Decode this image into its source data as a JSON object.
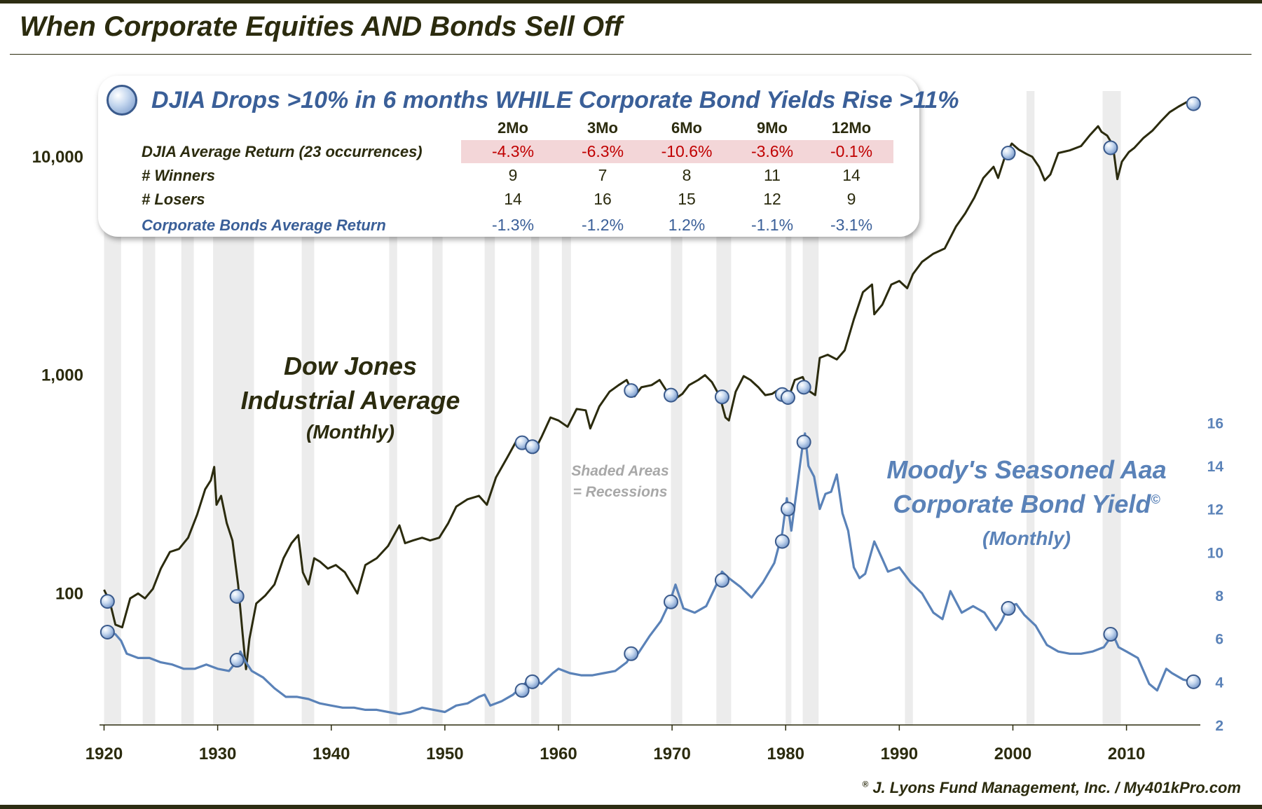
{
  "title": "When Corporate Equities AND Bonds Sell Off",
  "legend_title": "DJIA Drops >10% in 6 months WHILE Corporate Bond Yields Rise >11%",
  "stats_table": {
    "columns": [
      "2Mo",
      "3Mo",
      "6Mo",
      "9Mo",
      "12Mo"
    ],
    "rows": [
      {
        "label": "DJIA Average Return (23 occurrences)",
        "values": [
          "-4.3%",
          "-6.3%",
          "-10.6%",
          "-3.6%",
          "-0.1%"
        ]
      },
      {
        "label": "# Winners",
        "values": [
          "9",
          "7",
          "8",
          "11",
          "14"
        ]
      },
      {
        "label": "# Losers",
        "values": [
          "14",
          "16",
          "15",
          "12",
          "9"
        ]
      },
      {
        "label": "Corporate Bonds Average Return",
        "values": [
          "-1.3%",
          "-1.2%",
          "1.2%",
          "-1.1%",
          "-3.1%"
        ]
      }
    ]
  },
  "labels": {
    "dow_line1": "Dow Jones",
    "dow_line2": "Industrial Average",
    "dow_line3": "(Monthly)",
    "moody_line1": "Moody's Seasoned Aaa",
    "moody_line2": "Corporate Bond Yield",
    "moody_mark": "©",
    "moody_line3": "(Monthly)",
    "shade_line1": "Shaded Areas",
    "shade_line2": "= Recessions",
    "copyright_mark": "®",
    "copyright": "J. Lyons Fund Management, Inc. / My401kPro.com"
  },
  "colors": {
    "dow_line": "#2b2b0e",
    "bond_line": "#5a82b8",
    "recession_shade": "#e6e6e6",
    "highlight_band": "#f3d6d8",
    "negative": "#c00000"
  },
  "chart_data": {
    "type": "line",
    "x_ticks": [
      1920,
      1930,
      1940,
      1950,
      1960,
      1970,
      1980,
      1990,
      2000,
      2010
    ],
    "x_range": [
      1919.6,
      2016.5
    ],
    "left_axis": {
      "scale": "log",
      "ticks": [
        100,
        1000,
        10000
      ],
      "tick_labels": [
        "100",
        "1,000",
        "10,000"
      ],
      "range": [
        25,
        20000
      ]
    },
    "right_axis": {
      "scale": "linear",
      "ticks": [
        2,
        4,
        6,
        8,
        10,
        12,
        14,
        16
      ],
      "range": [
        2,
        16.5
      ]
    },
    "recessions": [
      [
        1920.0,
        1921.5
      ],
      [
        1923.4,
        1924.5
      ],
      [
        1926.8,
        1927.9
      ],
      [
        1929.6,
        1933.2
      ],
      [
        1937.4,
        1938.5
      ],
      [
        1945.1,
        1945.8
      ],
      [
        1948.9,
        1949.8
      ],
      [
        1953.5,
        1954.4
      ],
      [
        1957.6,
        1958.3
      ],
      [
        1960.3,
        1961.1
      ],
      [
        1969.9,
        1970.9
      ],
      [
        1973.9,
        1975.2
      ],
      [
        1980.0,
        1980.5
      ],
      [
        1981.5,
        1982.9
      ],
      [
        1990.5,
        1991.2
      ],
      [
        2001.2,
        2001.9
      ],
      [
        2007.9,
        2009.5
      ]
    ],
    "series": [
      {
        "name": "Dow Jones Industrial Average (Monthly)",
        "axis": "left",
        "x": [
          1920.0,
          1920.5,
          1921.0,
          1921.6,
          1922.3,
          1923.0,
          1923.6,
          1924.3,
          1925.0,
          1925.8,
          1926.6,
          1927.4,
          1928.2,
          1928.9,
          1929.4,
          1929.7,
          1929.9,
          1930.3,
          1930.8,
          1931.3,
          1931.8,
          1932.2,
          1932.5,
          1932.8,
          1933.4,
          1934.2,
          1935.0,
          1935.8,
          1936.5,
          1937.1,
          1937.5,
          1938.0,
          1938.5,
          1939.0,
          1939.7,
          1940.4,
          1941.2,
          1942.3,
          1943.0,
          1944.0,
          1945.0,
          1946.0,
          1946.5,
          1947.2,
          1948.0,
          1948.7,
          1949.5,
          1950.3,
          1951.0,
          1952.0,
          1953.0,
          1953.7,
          1954.5,
          1955.5,
          1956.3,
          1957.0,
          1957.8,
          1958.5,
          1959.3,
          1960.0,
          1960.8,
          1961.6,
          1962.4,
          1962.8,
          1963.6,
          1964.5,
          1965.3,
          1966.0,
          1966.7,
          1967.3,
          1968.2,
          1968.9,
          1969.5,
          1970.3,
          1970.9,
          1971.5,
          1972.3,
          1972.9,
          1973.5,
          1974.2,
          1974.7,
          1975.0,
          1975.6,
          1976.3,
          1976.9,
          1977.6,
          1978.2,
          1978.8,
          1979.4,
          1980.0,
          1980.3,
          1980.8,
          1981.5,
          1982.0,
          1982.6,
          1983.0,
          1983.7,
          1984.5,
          1985.2,
          1986.0,
          1986.8,
          1987.6,
          1987.8,
          1988.5,
          1989.3,
          1990.0,
          1990.7,
          1991.2,
          1992.0,
          1993.0,
          1994.0,
          1995.0,
          1995.8,
          1996.6,
          1997.4,
          1998.3,
          1998.7,
          1999.3,
          1999.9,
          2000.5,
          2001.2,
          2001.7,
          2002.3,
          2002.8,
          2003.3,
          2004.0,
          2005.0,
          2006.0,
          2006.8,
          2007.5,
          2007.8,
          2008.3,
          2008.8,
          2009.2,
          2009.6,
          2010.2,
          2010.7,
          2011.5,
          2012.3,
          2013.0,
          2013.8,
          2014.6,
          2015.3,
          2015.9
        ],
        "values": [
          104,
          92,
          72,
          70,
          95,
          100,
          95,
          105,
          130,
          155,
          160,
          180,
          230,
          300,
          330,
          380,
          255,
          280,
          210,
          175,
          110,
          65,
          45,
          62,
          90,
          98,
          110,
          145,
          170,
          185,
          125,
          110,
          145,
          140,
          130,
          135,
          125,
          100,
          135,
          145,
          165,
          205,
          170,
          175,
          180,
          175,
          180,
          210,
          250,
          270,
          280,
          255,
          340,
          420,
          500,
          485,
          440,
          520,
          640,
          620,
          580,
          700,
          690,
          570,
          720,
          840,
          900,
          950,
          800,
          880,
          900,
          950,
          850,
          780,
          820,
          900,
          950,
          1000,
          930,
          800,
          640,
          620,
          840,
          990,
          950,
          880,
          810,
          820,
          860,
          850,
          800,
          950,
          980,
          850,
          810,
          1200,
          1240,
          1180,
          1300,
          1800,
          2400,
          2600,
          1900,
          2100,
          2600,
          2700,
          2500,
          2900,
          3300,
          3600,
          3800,
          4800,
          5500,
          6500,
          8000,
          9000,
          8000,
          10000,
          11500,
          10800,
          10300,
          10000,
          9000,
          7800,
          8300,
          10400,
          10700,
          11200,
          12600,
          13800,
          13000,
          12500,
          11300,
          7900,
          9500,
          10500,
          11000,
          12200,
          13200,
          14500,
          16000,
          17000,
          17800,
          17500
        ]
      },
      {
        "name": "Moody's Seasoned Aaa Corporate Bond Yield (Monthly)",
        "axis": "right",
        "x": [
          1920.0,
          1920.5,
          1921.0,
          1921.5,
          1922.0,
          1923.0,
          1924.0,
          1925.0,
          1926.0,
          1927.0,
          1928.0,
          1929.0,
          1930.0,
          1931.0,
          1931.6,
          1932.0,
          1932.5,
          1933.0,
          1934.0,
          1935.0,
          1936.0,
          1937.0,
          1938.0,
          1939.0,
          1940.0,
          1941.0,
          1942.0,
          1943.0,
          1944.0,
          1945.0,
          1946.0,
          1947.0,
          1948.0,
          1949.0,
          1950.0,
          1951.0,
          1952.0,
          1953.0,
          1953.5,
          1954.0,
          1955.0,
          1956.0,
          1956.8,
          1957.6,
          1958.5,
          1959.5,
          1960.0,
          1961.0,
          1962.0,
          1963.0,
          1964.0,
          1965.0,
          1966.0,
          1966.5,
          1967.0,
          1968.0,
          1969.0,
          1969.8,
          1970.3,
          1971.0,
          1972.0,
          1973.0,
          1974.0,
          1974.4,
          1975.0,
          1976.0,
          1977.0,
          1978.0,
          1979.0,
          1979.7,
          1980.1,
          1980.5,
          1981.0,
          1981.5,
          1981.7,
          1982.0,
          1982.5,
          1983.0,
          1983.5,
          1984.0,
          1984.5,
          1985.0,
          1985.5,
          1986.0,
          1986.5,
          1987.0,
          1987.8,
          1988.5,
          1989.0,
          1990.0,
          1991.0,
          1992.0,
          1993.0,
          1993.8,
          1994.5,
          1995.5,
          1996.5,
          1997.5,
          1998.5,
          1999.0,
          1999.6,
          2000.3,
          2001.0,
          2002.0,
          2003.0,
          2004.0,
          2005.0,
          2006.0,
          2007.0,
          2008.0,
          2008.8,
          2009.3,
          2010.0,
          2011.0,
          2012.0,
          2012.7,
          2013.5,
          2014.0,
          2015.0,
          2015.9
        ],
        "values": [
          6.1,
          6.3,
          6.2,
          5.9,
          5.3,
          5.1,
          5.1,
          4.9,
          4.8,
          4.6,
          4.6,
          4.8,
          4.6,
          4.5,
          4.9,
          5.4,
          4.9,
          4.5,
          4.2,
          3.7,
          3.3,
          3.3,
          3.2,
          3.0,
          2.9,
          2.8,
          2.8,
          2.7,
          2.7,
          2.6,
          2.5,
          2.6,
          2.8,
          2.7,
          2.6,
          2.9,
          3.0,
          3.3,
          3.4,
          2.9,
          3.1,
          3.4,
          3.8,
          4.2,
          3.9,
          4.4,
          4.6,
          4.4,
          4.3,
          4.3,
          4.4,
          4.5,
          4.9,
          5.3,
          5.3,
          6.1,
          6.8,
          7.7,
          8.5,
          7.4,
          7.2,
          7.5,
          8.6,
          9.1,
          8.8,
          8.4,
          7.9,
          8.6,
          9.5,
          10.9,
          12.5,
          11.0,
          13.0,
          15.0,
          15.5,
          14.0,
          13.5,
          12.0,
          12.7,
          12.8,
          13.6,
          11.8,
          11.0,
          9.3,
          8.8,
          9.0,
          10.5,
          9.7,
          9.1,
          9.3,
          8.6,
          8.1,
          7.2,
          6.9,
          8.2,
          7.2,
          7.5,
          7.2,
          6.4,
          6.8,
          7.5,
          7.6,
          7.1,
          6.6,
          5.7,
          5.4,
          5.3,
          5.3,
          5.4,
          5.6,
          6.2,
          5.6,
          5.4,
          5.1,
          3.9,
          3.6,
          4.6,
          4.4,
          4.1,
          4.0
        ]
      }
    ],
    "events": [
      {
        "year": 1920.3,
        "dji": 92,
        "yield": 6.3
      },
      {
        "year": 1931.7,
        "dji": 97,
        "yield": 5.0
      },
      {
        "year": 1956.8,
        "dji": 490,
        "yield": 3.6
      },
      {
        "year": 1957.7,
        "dji": 470,
        "yield": 4.0
      },
      {
        "year": 1966.4,
        "dji": 850,
        "yield": 5.3
      },
      {
        "year": 1969.9,
        "dji": 810,
        "yield": 7.7
      },
      {
        "year": 1974.4,
        "dji": 795,
        "yield": 8.7
      },
      {
        "year": 1979.7,
        "dji": 815,
        "yield": 10.5
      },
      {
        "year": 1980.2,
        "dji": 790,
        "yield": 12.0
      },
      {
        "year": 1981.6,
        "dji": 880,
        "yield": 15.1
      },
      {
        "year": 1999.6,
        "dji": 10400,
        "yield": 7.4
      },
      {
        "year": 2008.6,
        "dji": 11000,
        "yield": 6.2
      },
      {
        "year": 2015.9,
        "dji": 17500,
        "yield": 4.0
      }
    ]
  }
}
